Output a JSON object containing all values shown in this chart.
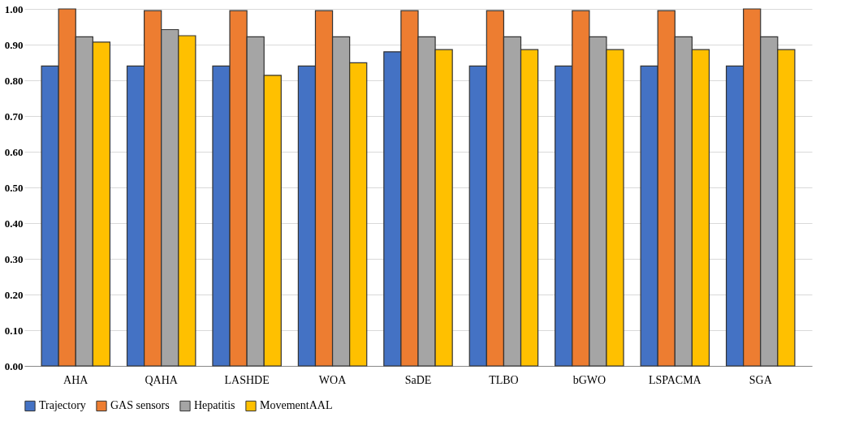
{
  "chart_data": {
    "type": "bar",
    "categories": [
      "AHA",
      "QAHA",
      "LASHDE",
      "WOA",
      "SaDE",
      "TLBO",
      "bGWO",
      "LSPACMA",
      "SGA"
    ],
    "series": [
      {
        "name": "Trajectory",
        "color": "#4472c4",
        "values": [
          0.84,
          0.84,
          0.84,
          0.84,
          0.88,
          0.84,
          0.84,
          0.84,
          0.84
        ]
      },
      {
        "name": "GAS sensors",
        "color": "#ed7d31",
        "values": [
          1.0,
          0.995,
          0.995,
          0.995,
          0.995,
          0.995,
          0.995,
          0.995,
          1.0
        ]
      },
      {
        "name": "Hepatitis",
        "color": "#a5a5a5",
        "values": [
          0.922,
          0.942,
          0.922,
          0.922,
          0.922,
          0.922,
          0.922,
          0.922,
          0.922
        ]
      },
      {
        "name": "MovementAAL",
        "color": "#ffc000",
        "values": [
          0.907,
          0.925,
          0.814,
          0.849,
          0.886,
          0.886,
          0.886,
          0.886,
          0.886
        ]
      }
    ],
    "ylim": [
      0,
      1.0
    ],
    "yticks": [
      {
        "value": 0,
        "label": "0.00"
      },
      {
        "value": 0.1,
        "label": "0.10"
      },
      {
        "value": 0.2,
        "label": "0.20"
      },
      {
        "value": 0.3,
        "label": "0.30"
      },
      {
        "value": 0.4,
        "label": "0.40"
      },
      {
        "value": 0.5,
        "label": "0.50"
      },
      {
        "value": 0.6,
        "label": "0.60"
      },
      {
        "value": 0.7,
        "label": "0.70"
      },
      {
        "value": 0.8,
        "label": "0.80"
      },
      {
        "value": 0.9,
        "label": "0.90"
      },
      {
        "value": 1.0,
        "label": "1.00"
      }
    ],
    "grid": "y",
    "legend": "bottom"
  }
}
